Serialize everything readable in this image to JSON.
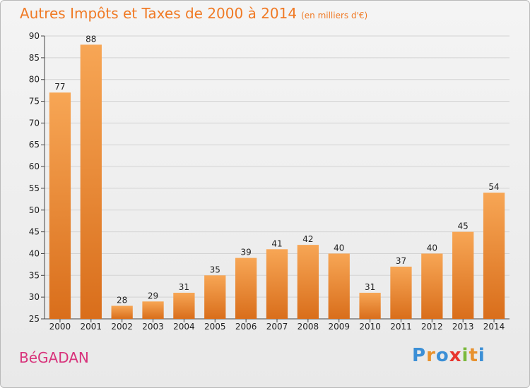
{
  "title": "Autres Impôts et Taxes de 2000 à 2014",
  "subtitle": "(en milliers d'€)",
  "commune": "BéGADAN",
  "logo": {
    "letters": [
      "P",
      "r",
      "o",
      "x",
      "i",
      "t",
      "i"
    ],
    "colors": [
      "#3b8fd6",
      "#e8912d",
      "#3b8fd6",
      "#e8342d",
      "#7ab93c",
      "#e8912d",
      "#3b8fd6"
    ]
  },
  "colors": {
    "bar_light": "#f7a655",
    "bar_dark": "#d96e1b",
    "title": "#f07a25",
    "commune": "#d8337b"
  },
  "chart_data": {
    "type": "bar",
    "categories": [
      "2000",
      "2001",
      "2002",
      "2003",
      "2004",
      "2005",
      "2006",
      "2007",
      "2008",
      "2009",
      "2010",
      "2011",
      "2012",
      "2013",
      "2014"
    ],
    "values": [
      77,
      88,
      28,
      29,
      31,
      35,
      39,
      41,
      42,
      40,
      31,
      37,
      40,
      45,
      54
    ],
    "ylim": [
      25,
      90
    ],
    "yticks": [
      25,
      30,
      35,
      40,
      45,
      50,
      55,
      60,
      65,
      70,
      75,
      80,
      85,
      90
    ],
    "grid": true
  }
}
